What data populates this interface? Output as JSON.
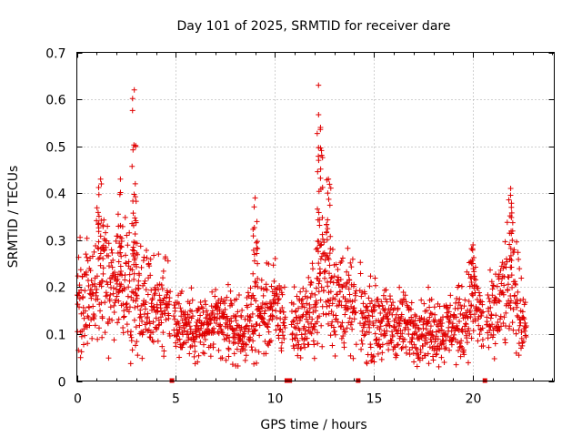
{
  "chart_data": {
    "type": "scatter",
    "title": "Day 101 of 2025, SRMTID for receiver dare",
    "xlabel": "GPS time / hours",
    "ylabel": "SRMTID / TECUs",
    "xlim": [
      0,
      24.1
    ],
    "ylim": [
      0,
      0.7
    ],
    "xticks": [
      0,
      5,
      10,
      15,
      20
    ],
    "xtick_labels": [
      "0",
      "5",
      "10",
      "15",
      "20"
    ],
    "yticks": [
      0,
      0.1,
      0.2,
      0.3,
      0.4,
      0.5,
      0.6,
      0.7
    ],
    "ytick_labels": [
      "0",
      "0.1",
      "0.2",
      "0.3",
      "0.4",
      "0.5",
      "0.6",
      "0.7"
    ],
    "grid": true,
    "marker": "plus",
    "series_color": "#e00000",
    "data_gaps_hours": [
      4.8,
      10.6,
      10.75,
      14.2,
      20.6
    ],
    "envelope_profile": [
      [
        0.0,
        0.17
      ],
      [
        0.5,
        0.19
      ],
      [
        1.0,
        0.22
      ],
      [
        1.5,
        0.22
      ],
      [
        2.0,
        0.21
      ],
      [
        2.5,
        0.21
      ],
      [
        3.0,
        0.19
      ],
      [
        3.5,
        0.17
      ],
      [
        4.0,
        0.17
      ],
      [
        4.5,
        0.16
      ],
      [
        5.0,
        0.13
      ],
      [
        5.5,
        0.12
      ],
      [
        6.0,
        0.11
      ],
      [
        6.5,
        0.11
      ],
      [
        7.0,
        0.12
      ],
      [
        7.5,
        0.12
      ],
      [
        8.0,
        0.11
      ],
      [
        8.5,
        0.1
      ],
      [
        9.0,
        0.15
      ],
      [
        9.5,
        0.14
      ],
      [
        10.0,
        0.16
      ],
      [
        10.5,
        0.13
      ],
      [
        11.0,
        0.12
      ],
      [
        11.5,
        0.13
      ],
      [
        12.0,
        0.15
      ],
      [
        12.5,
        0.24
      ],
      [
        13.0,
        0.18
      ],
      [
        13.5,
        0.17
      ],
      [
        14.0,
        0.15
      ],
      [
        14.5,
        0.13
      ],
      [
        15.0,
        0.13
      ],
      [
        15.5,
        0.12
      ],
      [
        16.0,
        0.12
      ],
      [
        16.5,
        0.12
      ],
      [
        17.0,
        0.11
      ],
      [
        17.5,
        0.11
      ],
      [
        18.0,
        0.11
      ],
      [
        18.5,
        0.11
      ],
      [
        19.0,
        0.12
      ],
      [
        19.5,
        0.12
      ],
      [
        20.0,
        0.18
      ],
      [
        20.5,
        0.12
      ],
      [
        21.0,
        0.13
      ],
      [
        21.5,
        0.18
      ],
      [
        22.0,
        0.2
      ],
      [
        22.5,
        0.14
      ],
      [
        22.7,
        0.12
      ]
    ],
    "peaks": [
      {
        "x": 1.2,
        "y": 0.43
      },
      {
        "x": 2.2,
        "y": 0.43
      },
      {
        "x": 2.9,
        "y": 0.62
      },
      {
        "x": 2.95,
        "y": 0.42
      },
      {
        "x": 9.0,
        "y": 0.39
      },
      {
        "x": 12.2,
        "y": 0.63
      },
      {
        "x": 12.3,
        "y": 0.54
      },
      {
        "x": 12.7,
        "y": 0.43
      },
      {
        "x": 21.9,
        "y": 0.41
      },
      {
        "x": 20.0,
        "y": 0.29
      }
    ]
  }
}
